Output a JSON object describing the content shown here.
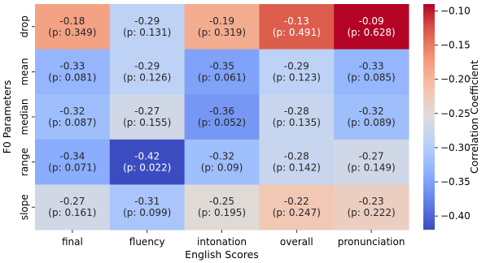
{
  "chart_data": {
    "type": "heatmap",
    "title": "",
    "xlabel": "English Scores",
    "ylabel": "F0 Parameters",
    "x_categories": [
      "final",
      "fluency",
      "intonation",
      "overall",
      "pronunciation"
    ],
    "y_categories": [
      "drop",
      "mean",
      "median",
      "range",
      "slope"
    ],
    "values": [
      [
        -0.18,
        -0.29,
        -0.19,
        -0.13,
        -0.09
      ],
      [
        -0.33,
        -0.29,
        -0.35,
        -0.29,
        -0.33
      ],
      [
        -0.32,
        -0.27,
        -0.36,
        -0.28,
        -0.32
      ],
      [
        -0.34,
        -0.42,
        -0.32,
        -0.28,
        -0.27
      ],
      [
        -0.27,
        -0.31,
        -0.25,
        -0.22,
        -0.23
      ]
    ],
    "cell_labels": [
      [
        "-0.18\n(p: 0.349)",
        "-0.29\n(p: 0.131)",
        "-0.19\n(p: 0.319)",
        "-0.13\n(p: 0.491)",
        "-0.09\n(p: 0.628)"
      ],
      [
        "-0.33\n(p: 0.081)",
        "-0.29\n(p: 0.126)",
        "-0.35\n(p: 0.061)",
        "-0.29\n(p: 0.123)",
        "-0.33\n(p: 0.085)"
      ],
      [
        "-0.32\n(p: 0.087)",
        "-0.27\n(p: 0.155)",
        "-0.36\n(p: 0.052)",
        "-0.28\n(p: 0.135)",
        "-0.32\n(p: 0.089)"
      ],
      [
        "-0.34\n(p: 0.071)",
        "-0.42\n(p: 0.022)",
        "-0.32\n(p: 0.09)",
        "-0.28\n(p: 0.142)",
        "-0.27\n(p: 0.149)"
      ],
      [
        "-0.27\n(p: 0.161)",
        "-0.31\n(p: 0.099)",
        "-0.25\n(p: 0.195)",
        "-0.22\n(p: 0.247)",
        "-0.23\n(p: 0.222)"
      ]
    ],
    "colorscale": "coolwarm",
    "colorbar": {
      "label": "Correlation Coefficient",
      "range": [
        -0.42,
        -0.09
      ],
      "ticks": [
        "-0.10",
        "-0.15",
        "-0.20",
        "-0.25",
        "-0.30",
        "-0.35",
        "-0.40"
      ]
    }
  }
}
